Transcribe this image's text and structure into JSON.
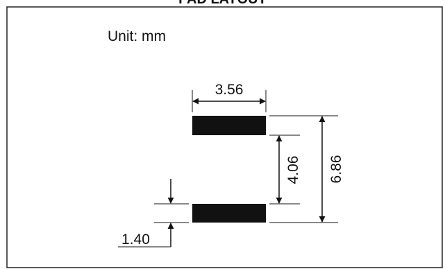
{
  "title": "PAD LAYOUT",
  "unit_label": "Unit: mm",
  "dimensions": {
    "pad_width": "3.56",
    "pad_gap": "4.06",
    "overall_length": "6.86",
    "pad_length": "1.40"
  }
}
